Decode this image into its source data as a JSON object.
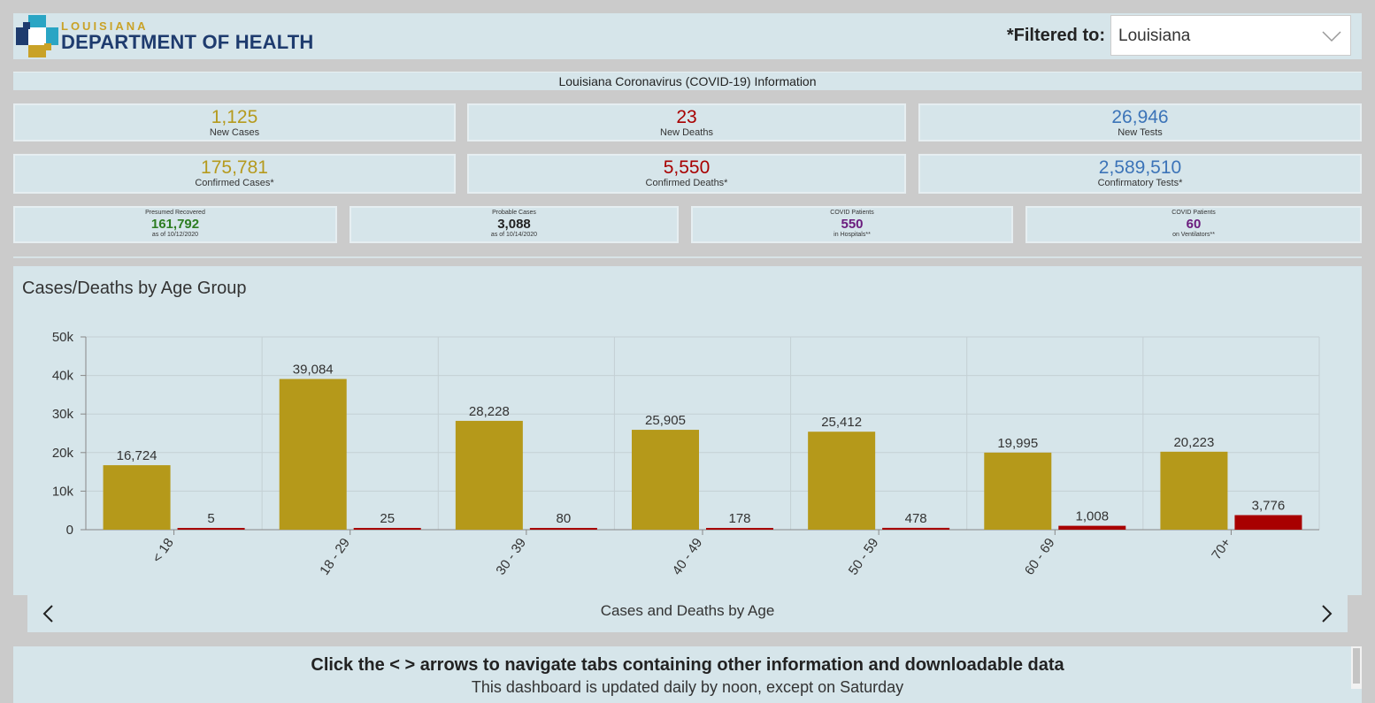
{
  "header": {
    "logo_top": "LOUISIANA",
    "logo_bottom": "DEPARTMENT OF HEALTH",
    "filter_label": "*Filtered to:",
    "filter_value": "Louisiana"
  },
  "info_title": "Louisiana Coronavirus (COVID-19) Information",
  "stats_row1": [
    {
      "value": "1,125",
      "label": "New Cases"
    },
    {
      "value": "23",
      "label": "New Deaths"
    },
    {
      "value": "26,946",
      "label": "New Tests"
    }
  ],
  "stats_row2": [
    {
      "value": "175,781",
      "label": "Confirmed Cases*"
    },
    {
      "value": "5,550",
      "label": "Confirmed Deaths*"
    },
    {
      "value": "2,589,510",
      "label": "Confirmatory Tests*"
    }
  ],
  "stats_row3": [
    {
      "caption": "Presumed Recovered",
      "value": "161,792",
      "sub": "as of 10/12/2020"
    },
    {
      "caption": "Probable Cases",
      "value": "3,088",
      "sub": "as of 10/14/2020"
    },
    {
      "caption": "COVID Patients",
      "value": "550",
      "sub": "in Hospitals**"
    },
    {
      "caption": "COVID Patients",
      "value": "60",
      "sub": "on Ventilators**"
    }
  ],
  "colors": {
    "cases": "#b5991a",
    "deaths": "#a80000",
    "gold_text": "#b59a1e",
    "red_text": "#a80000",
    "blue_text": "#3c74b8"
  },
  "chart_data": {
    "type": "bar",
    "title": "Cases/Deaths by Age Group",
    "xlabel": "",
    "ylabel": "",
    "ylim": [
      0,
      50000
    ],
    "yticks": [
      0,
      10000,
      20000,
      30000,
      40000,
      50000
    ],
    "ytick_labels": [
      "0",
      "10k",
      "20k",
      "30k",
      "40k",
      "50k"
    ],
    "grid": true,
    "categories": [
      "< 18",
      "18 - 29",
      "30 - 39",
      "40 - 49",
      "50 - 59",
      "60 - 69",
      "70+"
    ],
    "series": [
      {
        "values": [
          16724,
          39084,
          28228,
          25905,
          25412,
          19995,
          20223
        ],
        "labels": [
          "16,724",
          "39,084",
          "28,228",
          "25,905",
          "25,412",
          "19,995",
          "20,223"
        ]
      },
      {
        "values": [
          5,
          25,
          80,
          178,
          478,
          1008,
          3776
        ],
        "labels": [
          "5",
          "25",
          "80",
          "178",
          "478",
          "1,008",
          "3,776"
        ]
      }
    ]
  },
  "nav": {
    "label": "Cases and Deaths by Age"
  },
  "footer": {
    "main": "Click the < > arrows to navigate tabs containing other information and downloadable data",
    "sub": "This dashboard is updated daily by noon, except on Saturday"
  }
}
